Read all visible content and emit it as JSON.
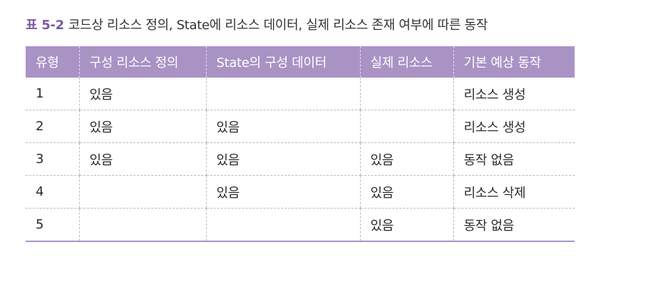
{
  "caption": {
    "number": "표 5-2",
    "title": "코드상 리소스 정의, State에 리소스 데이터, 실제 리소스 존재 여부에 따른 동작"
  },
  "table": {
    "headers": [
      "유형",
      "구성 리소스 정의",
      "State의 구성 데이터",
      "실제 리소스",
      "기본 예상 동작"
    ],
    "rows": [
      [
        "1",
        "있음",
        "",
        "",
        "리소스 생성"
      ],
      [
        "2",
        "있음",
        "있음",
        "",
        "리소스 생성"
      ],
      [
        "3",
        "있음",
        "있음",
        "있음",
        "동작 없음"
      ],
      [
        "4",
        "",
        "있음",
        "있음",
        "리소스 삭제"
      ],
      [
        "5",
        "",
        "",
        "있음",
        "동작 없음"
      ]
    ]
  },
  "colors": {
    "accent": "#7a5aa0",
    "header_bg": "#a993c5",
    "header_text": "#ffffff",
    "grid_line": "#b9b9b9"
  }
}
